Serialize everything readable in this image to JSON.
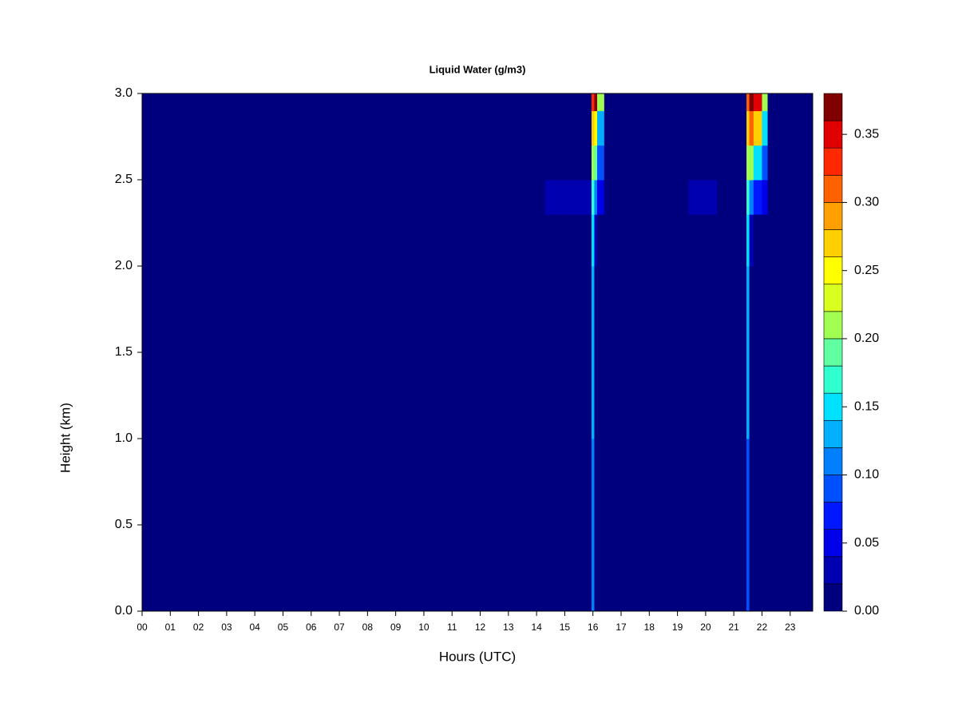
{
  "chart_data": {
    "type": "heatmap",
    "title": "Liquid Water (g/m3)",
    "xlabel": "Hours (UTC)",
    "ylabel": "Height (km)",
    "xlim": [
      0,
      23.8
    ],
    "ylim": [
      0,
      3
    ],
    "xticks": [
      {
        "value": 0,
        "label": "00"
      },
      {
        "value": 1,
        "label": "01"
      },
      {
        "value": 2,
        "label": "02"
      },
      {
        "value": 3,
        "label": "03"
      },
      {
        "value": 4,
        "label": "04"
      },
      {
        "value": 5,
        "label": "05"
      },
      {
        "value": 6,
        "label": "06"
      },
      {
        "value": 7,
        "label": "07"
      },
      {
        "value": 8,
        "label": "08"
      },
      {
        "value": 9,
        "label": "09"
      },
      10,
      11,
      12,
      13,
      14,
      15,
      16,
      17,
      18,
      19,
      20,
      21,
      22,
      23
    ],
    "yticks": [
      {
        "value": 0,
        "label": "0.0"
      },
      {
        "value": 0.5,
        "label": "0.5"
      },
      {
        "value": 1,
        "label": "1.0"
      },
      {
        "value": 1.5,
        "label": "1.5"
      },
      {
        "value": 2,
        "label": "2.0"
      },
      {
        "value": 2.5,
        "label": "2.5"
      },
      {
        "value": 3,
        "label": "3.0"
      }
    ],
    "x": [
      0,
      14.3,
      14.9,
      15.95,
      16.05,
      16.15,
      16.4,
      19.4,
      20.4,
      21.45,
      21.55,
      21.7,
      22.0,
      22.2,
      23.8
    ],
    "y": [
      0,
      1.0,
      2.0,
      2.3,
      2.5,
      2.7,
      2.9,
      3.0
    ],
    "z": [
      [
        0,
        0,
        0,
        0.1,
        0,
        0,
        0,
        0,
        0,
        0.08,
        0,
        0,
        0,
        0
      ],
      [
        0,
        0,
        0,
        0.12,
        0,
        0,
        0,
        0,
        0,
        0.12,
        0,
        0,
        0,
        0
      ],
      [
        0,
        0,
        0,
        0.14,
        0.02,
        0,
        0,
        0,
        0,
        0.14,
        0.02,
        0,
        0,
        0
      ],
      [
        0,
        0.03,
        0.02,
        0.16,
        0.1,
        0.04,
        0,
        0.02,
        0,
        0.16,
        0.1,
        0.06,
        0.04,
        0
      ],
      [
        0,
        0,
        0,
        0.2,
        0.18,
        0.08,
        0,
        0,
        0,
        0.2,
        0.2,
        0.14,
        0.08,
        0
      ],
      [
        0,
        0,
        0,
        0.26,
        0.25,
        0.12,
        0,
        0,
        0,
        0.26,
        0.3,
        0.26,
        0.14,
        0
      ],
      [
        0,
        0,
        0,
        0.32,
        0.36,
        0.2,
        0,
        0,
        0,
        0.3,
        0.36,
        0.34,
        0.2,
        0
      ]
    ],
    "levels": [
      0,
      0.02,
      0.04,
      0.06,
      0.08,
      0.1,
      0.12,
      0.14,
      0.16,
      0.18,
      0.2,
      0.22,
      0.24,
      0.26,
      0.28,
      0.3,
      0.32,
      0.34,
      0.36,
      0.38
    ],
    "colors": [
      "#00007F",
      "#0000B0",
      "#0000E8",
      "#0018FF",
      "#0050FF",
      "#0080FF",
      "#00B0FF",
      "#00E0FF",
      "#30FFD0",
      "#60FFA0",
      "#A0FF50",
      "#D8FF20",
      "#FFFF00",
      "#FFD000",
      "#FFA000",
      "#FF6000",
      "#FF2800",
      "#E00000",
      "#800000"
    ],
    "colorbar_ticks": [
      {
        "value": 0,
        "label": "0.00"
      },
      {
        "value": 0.05,
        "label": "0.05"
      },
      {
        "value": 0.1,
        "label": "0.10"
      },
      {
        "value": 0.15,
        "label": "0.15"
      },
      {
        "value": 0.2,
        "label": "0.20"
      },
      {
        "value": 0.25,
        "label": "0.25"
      },
      {
        "value": 0.3,
        "label": "0.30"
      },
      {
        "value": 0.35,
        "label": "0.35"
      }
    ]
  }
}
